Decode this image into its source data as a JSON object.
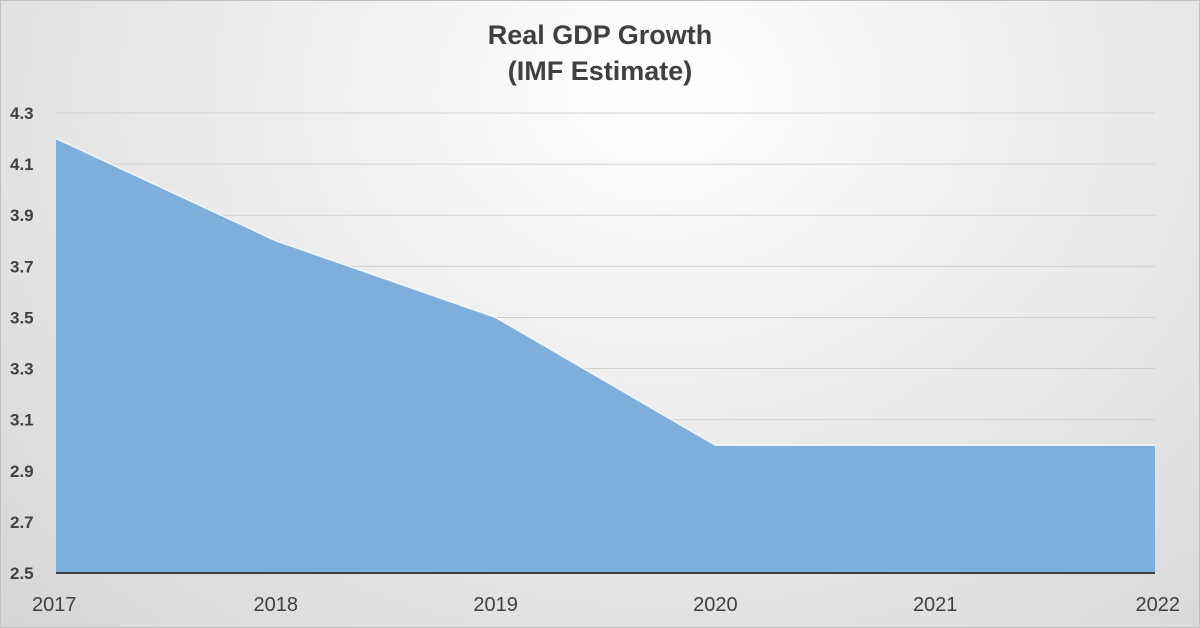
{
  "chart_data": {
    "type": "area",
    "title": [
      "Real GDP Growth",
      "(IMF Estimate)"
    ],
    "xlabel": "",
    "ylabel": "",
    "categories": [
      "2017",
      "2018",
      "2019",
      "2020",
      "2021",
      "2022"
    ],
    "values": [
      4.2,
      3.8,
      3.5,
      3.0,
      3.0,
      3.0
    ],
    "ylim": [
      2.5,
      4.3
    ],
    "yticks": [
      "2.5",
      "2.7",
      "2.9",
      "3.1",
      "3.3",
      "3.5",
      "3.7",
      "3.9",
      "4.1",
      "4.3"
    ],
    "grid": true,
    "legend": "none",
    "colors": {
      "fill": "#7eaedb",
      "edge": "#ffffff",
      "grid": "#d0d0d0",
      "axis": "#404040"
    }
  }
}
